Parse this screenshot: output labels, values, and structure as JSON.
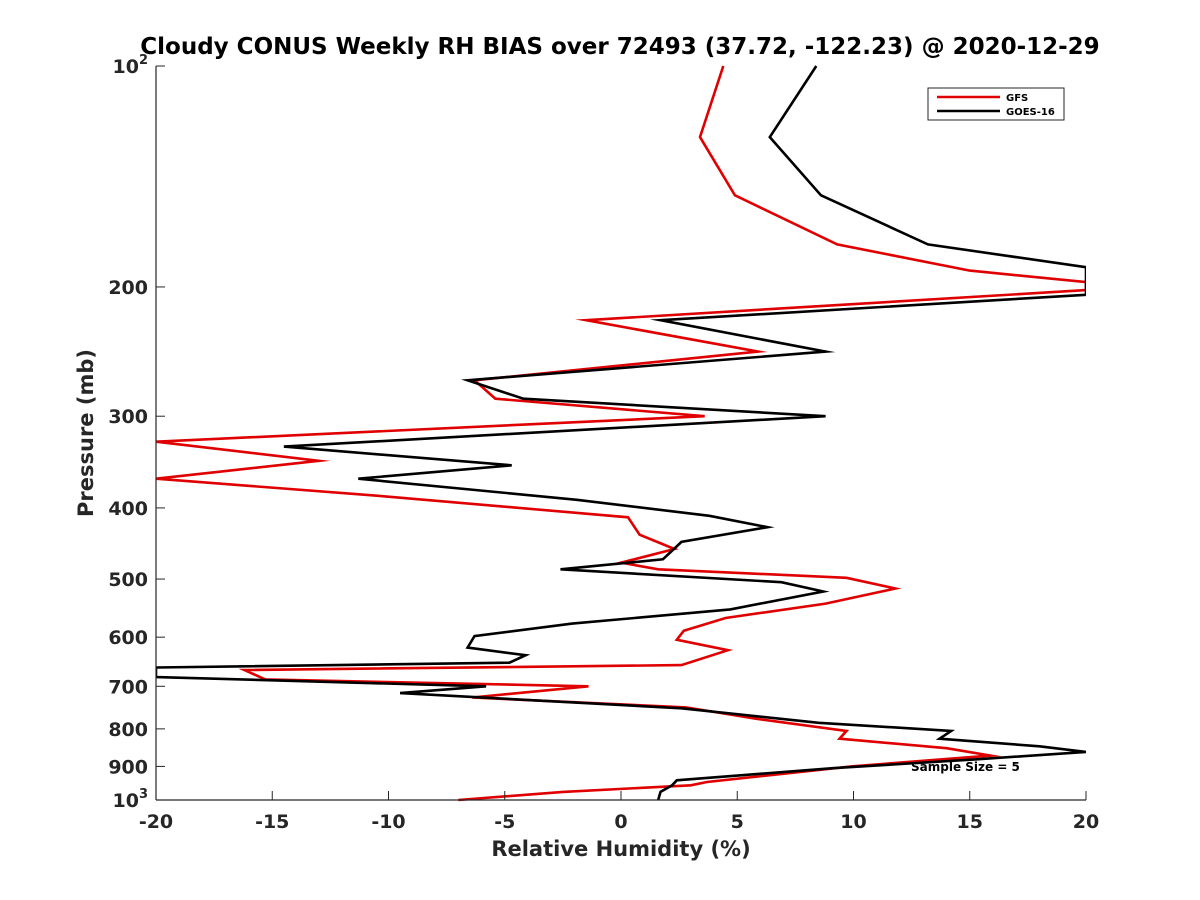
{
  "chart_data": {
    "type": "line",
    "title": "Cloudy CONUS Weekly RH BIAS over 72493 (37.72, -122.23) @ 2020-12-29",
    "xlabel": "Relative Humidity (%)",
    "ylabel": "Pressure (mb)",
    "xlim": [
      -20,
      20
    ],
    "ylim": [
      100,
      1000
    ],
    "y_scale": "log",
    "y_reversed": true,
    "grid": false,
    "legend_position": "top-right",
    "x_ticks": [
      "-20",
      "-15",
      "-10",
      "-5",
      "0",
      "5",
      "10",
      "15",
      "20"
    ],
    "y_ticks": [
      {
        "value": 100,
        "base": "10",
        "exp": "2"
      },
      {
        "value": 200,
        "label": "200"
      },
      {
        "value": 300,
        "label": "300"
      },
      {
        "value": 400,
        "label": "400"
      },
      {
        "value": 500,
        "label": "500"
      },
      {
        "value": 600,
        "label": "600"
      },
      {
        "value": 700,
        "label": "700"
      },
      {
        "value": 800,
        "label": "800"
      },
      {
        "value": 900,
        "label": "900"
      },
      {
        "value": 1000,
        "base": "10",
        "exp": "3"
      }
    ],
    "annotation": "Sample Size = 5",
    "series": [
      {
        "name": "GFS",
        "color": "#e00000",
        "points": [
          [
            4.4,
            100
          ],
          [
            3.4,
            125
          ],
          [
            4.9,
            150
          ],
          [
            9.3,
            175
          ],
          [
            15,
            190
          ],
          [
            20,
            197
          ],
          [
            20,
            202
          ],
          [
            -1.5,
            222
          ],
          [
            5.9,
            245
          ],
          [
            -6.3,
            268
          ],
          [
            -5.4,
            284
          ],
          [
            3.6,
            300
          ],
          [
            -20,
            325
          ],
          [
            -13,
            345
          ],
          [
            -20,
            365
          ],
          [
            -10.5,
            385
          ],
          [
            0.3,
            412
          ],
          [
            0.8,
            435
          ],
          [
            2.3,
            455
          ],
          [
            0,
            475
          ],
          [
            1.6,
            485
          ],
          [
            9.7,
            498
          ],
          [
            11.8,
            515
          ],
          [
            8.8,
            540
          ],
          [
            4.5,
            565
          ],
          [
            2.7,
            588
          ],
          [
            2.4,
            605
          ],
          [
            4.6,
            625
          ],
          [
            2.6,
            655
          ],
          [
            -16.2,
            665
          ],
          [
            -15.3,
            685
          ],
          [
            -1.4,
            700
          ],
          [
            -6.4,
            725
          ],
          [
            2.8,
            748
          ],
          [
            5.8,
            775
          ],
          [
            9.7,
            805
          ],
          [
            9.4,
            825
          ],
          [
            14,
            850
          ],
          [
            15.9,
            870
          ],
          [
            9.9,
            900
          ],
          [
            3.7,
            945
          ],
          [
            3,
            955
          ],
          [
            -2.5,
            975
          ],
          [
            -7,
            1000
          ]
        ]
      },
      {
        "name": "GOES-16",
        "color": "#000000",
        "points": [
          [
            8.4,
            100
          ],
          [
            6.4,
            125
          ],
          [
            8.6,
            150
          ],
          [
            13.2,
            175
          ],
          [
            20,
            188
          ],
          [
            20,
            205
          ],
          [
            1.7,
            222
          ],
          [
            8.8,
            245
          ],
          [
            -6.6,
            268
          ],
          [
            -4.2,
            284
          ],
          [
            8.8,
            300
          ],
          [
            -14.5,
            330
          ],
          [
            -4.7,
            350
          ],
          [
            -11.3,
            365
          ],
          [
            -1.9,
            390
          ],
          [
            3.8,
            410
          ],
          [
            6.3,
            425
          ],
          [
            2.6,
            445
          ],
          [
            1.8,
            470
          ],
          [
            -2.6,
            485
          ],
          [
            6.9,
            505
          ],
          [
            8.7,
            520
          ],
          [
            4.7,
            550
          ],
          [
            -2.1,
            575
          ],
          [
            -6.3,
            598
          ],
          [
            -6.6,
            620
          ],
          [
            -4.1,
            635
          ],
          [
            -4.8,
            650
          ],
          [
            -20,
            660
          ],
          [
            -20,
            680
          ],
          [
            -5.8,
            700
          ],
          [
            -9.5,
            715
          ],
          [
            2.6,
            750
          ],
          [
            8.5,
            785
          ],
          [
            14.2,
            805
          ],
          [
            13.7,
            825
          ],
          [
            18,
            845
          ],
          [
            20,
            860
          ],
          [
            15.3,
            880
          ],
          [
            9.1,
            905
          ],
          [
            2.4,
            940
          ],
          [
            2.2,
            955
          ],
          [
            1.7,
            975
          ],
          [
            1.6,
            1000
          ]
        ]
      }
    ]
  }
}
